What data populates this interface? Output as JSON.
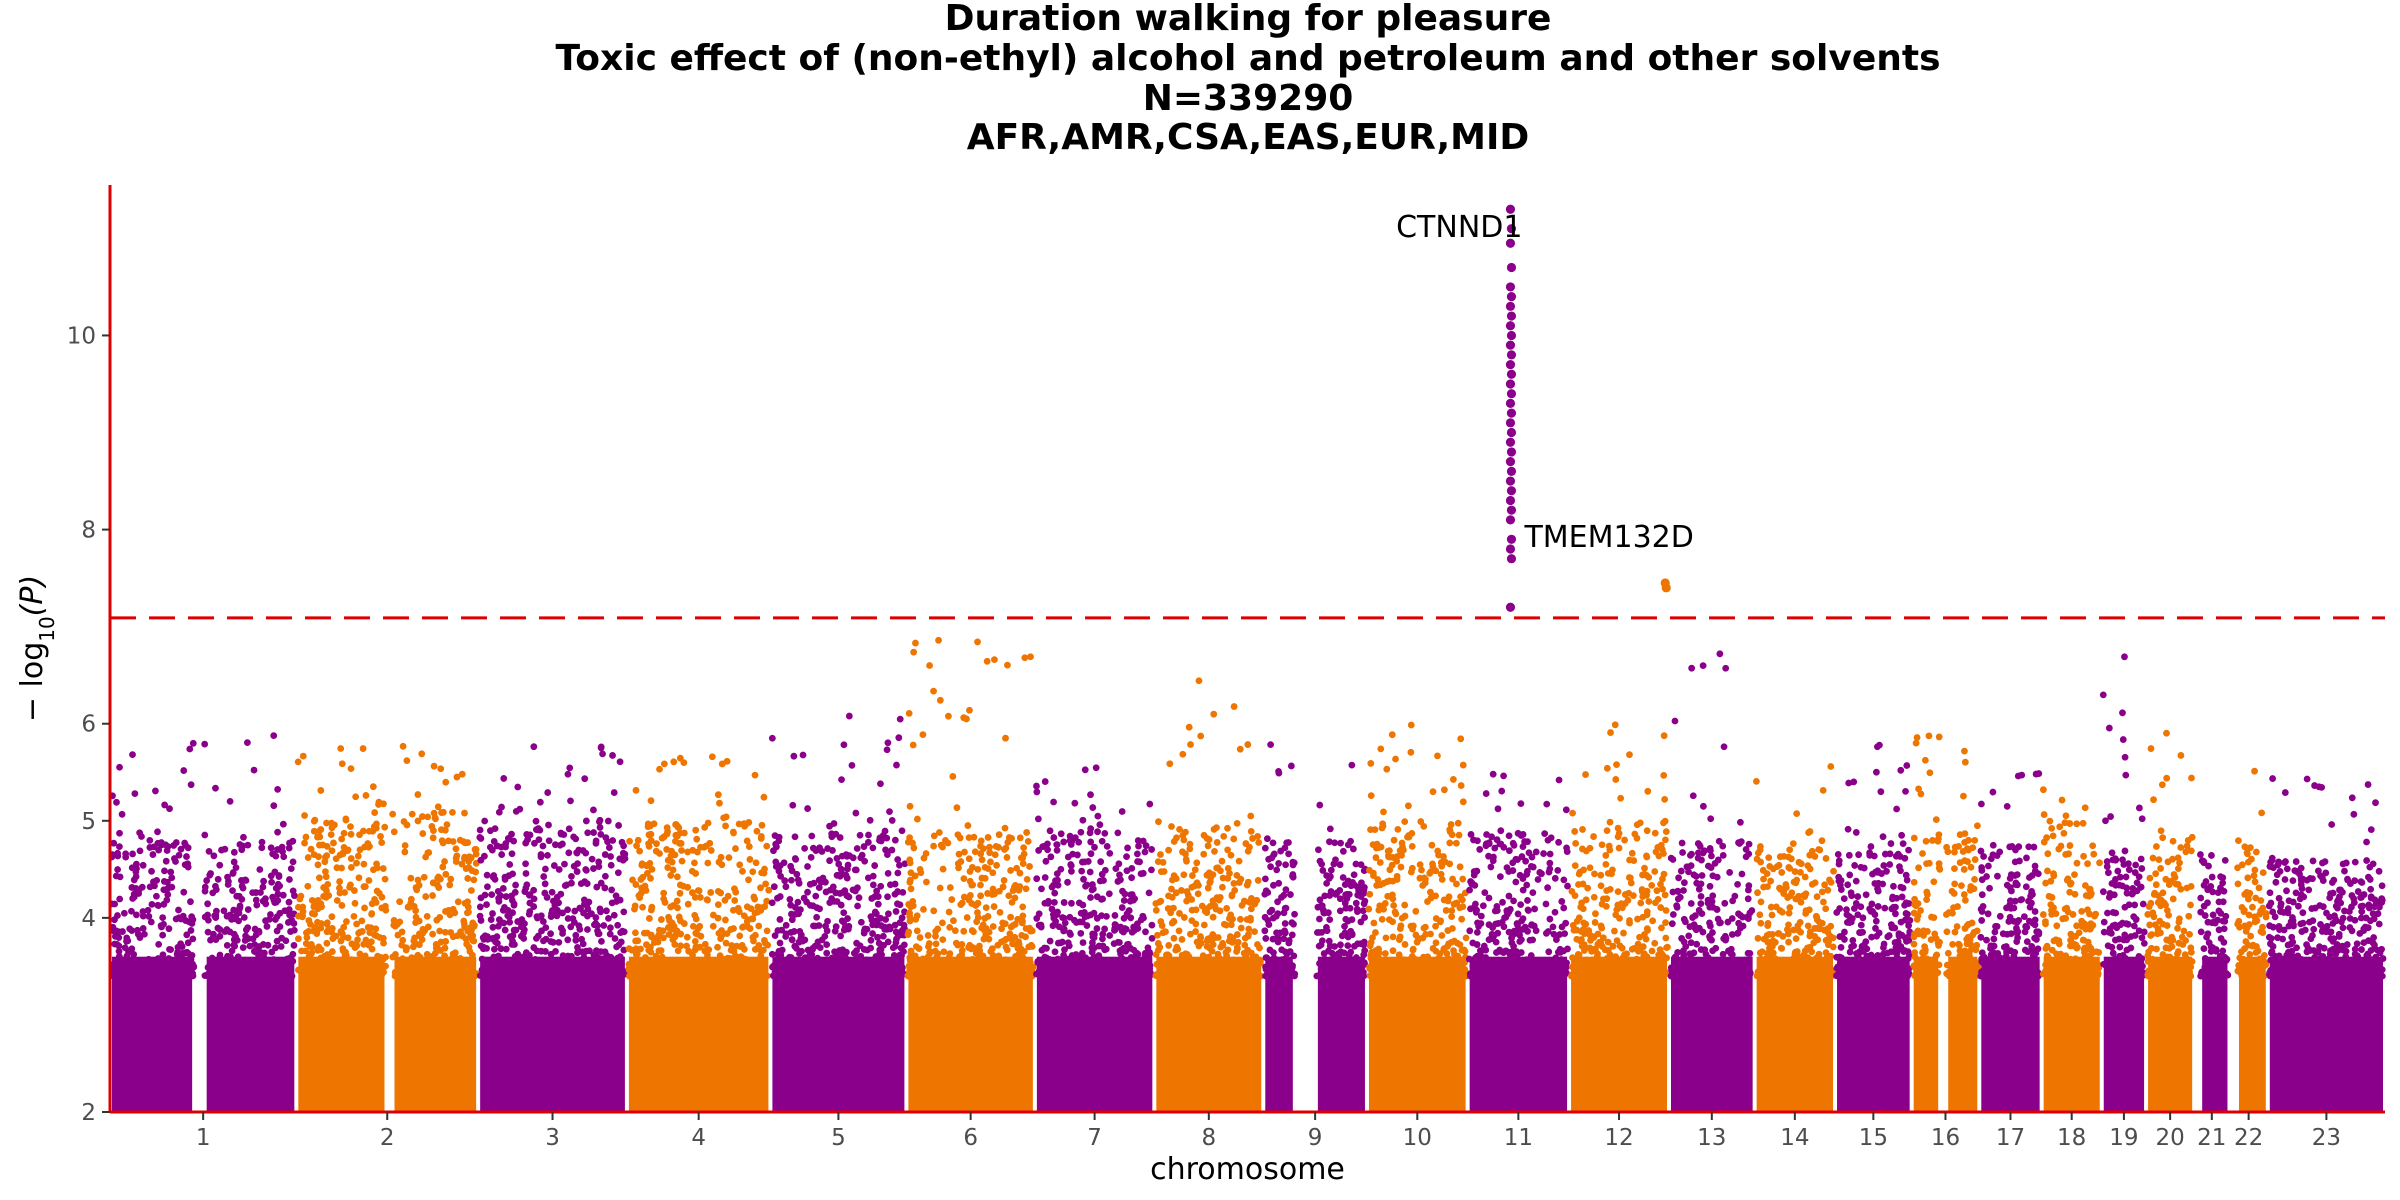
{
  "chart_data": {
    "type": "scatter",
    "subtype": "manhattan",
    "title_lines": [
      "Duration walking for pleasure",
      "Toxic effect of (non-ethyl) alcohol and petroleum and other solvents",
      "N=339290",
      "AFR,AMR,CSA,EAS,EUR,MID"
    ],
    "xlabel": "chromosome",
    "ylabel_prefix": "− log",
    "ylabel_sub": "10",
    "ylabel_suffix": "(P)",
    "ylim": [
      2,
      11.55
    ],
    "yticks": [
      2,
      4,
      5,
      6,
      8,
      10
    ],
    "ytick_labels": [
      "2",
      "4",
      "5",
      "6",
      "8",
      "10"
    ],
    "significance_threshold": 7.09,
    "colors": {
      "odd": "#8b008b",
      "even": "#ee7500",
      "axis": "#dd0000",
      "threshold": "#dd0000"
    },
    "chromosomes": [
      {
        "label": "1",
        "start": 0,
        "end": 248,
        "base": 4.3,
        "peak": 5.9,
        "gap": [
          112,
          126
        ]
      },
      {
        "label": "2",
        "start": 248,
        "end": 490,
        "base": 4.5,
        "peak": 5.8,
        "gap": [
          120,
          128
        ]
      },
      {
        "label": "3",
        "start": 490,
        "end": 688,
        "base": 4.4,
        "peak": 5.9
      },
      {
        "label": "4",
        "start": 688,
        "end": 879,
        "base": 4.4,
        "peak": 5.7
      },
      {
        "label": "5",
        "start": 879,
        "end": 1060,
        "base": 4.3,
        "peak": 6.1
      },
      {
        "label": "6",
        "start": 1060,
        "end": 1231,
        "base": 4.3,
        "peak": 6.9
      },
      {
        "label": "7",
        "start": 1231,
        "end": 1390,
        "base": 4.3,
        "peak": 5.6
      },
      {
        "label": "8",
        "start": 1390,
        "end": 1535,
        "base": 4.4,
        "peak": 6.6
      },
      {
        "label": "9",
        "start": 1535,
        "end": 1673,
        "base": 4.2,
        "peak": 5.8,
        "gap": [
          42,
          70
        ]
      },
      {
        "label": "10",
        "start": 1673,
        "end": 1807,
        "base": 4.4,
        "peak": 6.0
      },
      {
        "label": "11",
        "start": 1807,
        "end": 1942,
        "base": 4.3,
        "peak": 5.5
      },
      {
        "label": "12",
        "start": 1942,
        "end": 2075,
        "base": 4.4,
        "peak": 6.1
      },
      {
        "label": "13",
        "start": 2075,
        "end": 2189,
        "base": 4.2,
        "peak": 6.8
      },
      {
        "label": "14",
        "start": 2189,
        "end": 2296,
        "base": 4.2,
        "peak": 5.6
      },
      {
        "label": "15",
        "start": 2296,
        "end": 2398,
        "base": 4.1,
        "peak": 5.8
      },
      {
        "label": "16",
        "start": 2398,
        "end": 2488,
        "base": 4.3,
        "peak": 5.9,
        "gap": [
          38,
          46
        ]
      },
      {
        "label": "17",
        "start": 2488,
        "end": 2571,
        "base": 4.2,
        "peak": 5.6
      },
      {
        "label": "18",
        "start": 2571,
        "end": 2651,
        "base": 4.4,
        "peak": 5.6
      },
      {
        "label": "19",
        "start": 2651,
        "end": 2710,
        "base": 4.1,
        "peak": 6.8
      },
      {
        "label": "20",
        "start": 2710,
        "end": 2774,
        "base": 4.3,
        "peak": 6.0
      },
      {
        "label": "21",
        "start": 2774,
        "end": 2821,
        "base": 4.1,
        "peak": 4.9,
        "gap": [
          0,
          8
        ]
      },
      {
        "label": "22",
        "start": 2821,
        "end": 2872,
        "base": 4.2,
        "peak": 5.6,
        "gap": [
          0,
          10
        ]
      },
      {
        "label": "23",
        "start": 2872,
        "end": 3028,
        "base": 4.0,
        "peak": 5.6
      }
    ],
    "hits": [
      {
        "chrom": "11",
        "pos": 57,
        "gene": "CTNND1",
        "points": [
          11.3,
          11.1,
          10.95,
          10.7,
          10.5,
          10.4,
          10.3,
          10.2,
          10.1,
          10.0,
          9.9,
          9.8,
          9.7,
          9.6,
          9.5,
          9.4,
          9.3,
          9.2,
          9.1,
          9.0,
          8.9,
          8.8,
          8.7,
          8.6,
          8.5,
          8.4,
          8.3,
          8.2,
          8.1,
          7.9,
          7.8,
          7.7,
          7.2
        ]
      },
      {
        "chrom": "12",
        "pos": 128,
        "gene": "TMEM132D",
        "points": [
          7.45,
          7.4
        ]
      }
    ]
  }
}
